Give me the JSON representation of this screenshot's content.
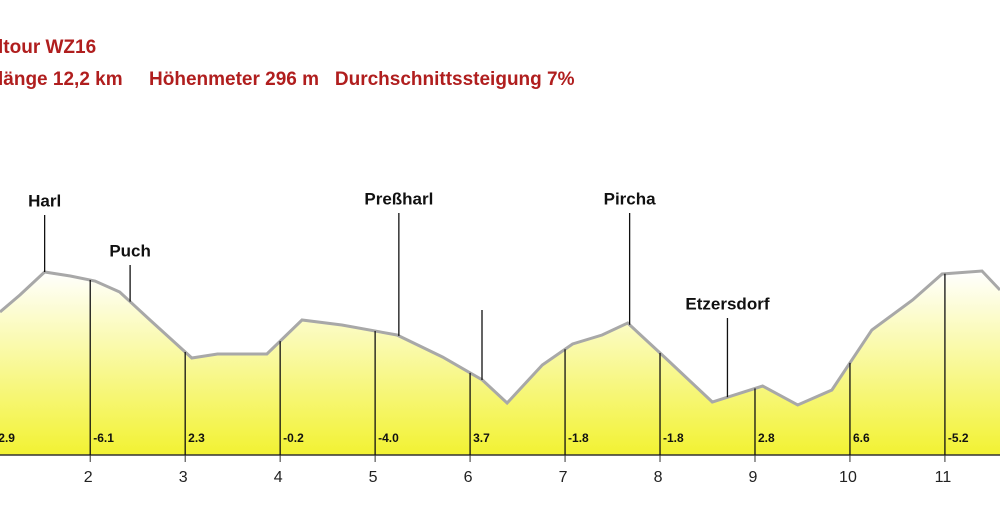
{
  "chart_data": {
    "type": "area",
    "title": "ltour WZ16",
    "subtitle": "länge 12,2 km     Höhenmeter 296 m   Durchschnittssteigung 7%",
    "x": [
      1.05,
      1.26,
      1.52,
      1.79,
      2.05,
      2.31,
      2.63,
      3.07,
      3.34,
      3.86,
      4.23,
      4.65,
      5.23,
      5.71,
      6.13,
      6.39,
      6.76,
      7.08,
      7.39,
      7.66,
      8.08,
      8.55,
      9.08,
      9.45,
      9.81,
      10.23,
      10.66,
      10.97,
      11.39,
      11.58
    ],
    "values": [
      143,
      160,
      183,
      179,
      174,
      163,
      135,
      97,
      101,
      101,
      135,
      130,
      120,
      98,
      75,
      52,
      90,
      111,
      120,
      132,
      95,
      53,
      69,
      50,
      65,
      125,
      155,
      181,
      184,
      165
    ],
    "color": "#a8a8a8",
    "fill_bottom": "#f2f232",
    "fill_top": "#ffffff",
    "xlim": [
      1.05,
      11.58
    ],
    "ylim": [
      0,
      200
    ],
    "xticks": [
      2,
      3,
      4,
      5,
      6,
      7,
      8,
      9,
      10,
      11
    ],
    "places": [
      {
        "name": "Harl",
        "x": 1.52
      },
      {
        "name": "Puch",
        "x": 2.42
      },
      {
        "name": "Preßharl",
        "x": 5.25
      },
      {
        "name": "Pircha",
        "x": 7.68
      },
      {
        "name": "Etzersdorf",
        "x": 8.71
      }
    ],
    "segments": {
      "x": [
        1,
        2,
        3,
        4,
        5,
        6,
        7,
        8,
        9,
        10,
        11
      ],
      "values": [
        2.9,
        -6.1,
        2.3,
        -0.2,
        -4,
        3.7,
        -1.8,
        -1.8,
        2.8,
        6.6,
        -5.2
      ],
      "value_labels": [
        "2.9",
        "-6.1",
        "2.3",
        "-0.2",
        "-4.0",
        "3.7",
        "-1.8",
        "-1.8",
        "2.8",
        "6.6",
        "-5.2"
      ]
    }
  }
}
